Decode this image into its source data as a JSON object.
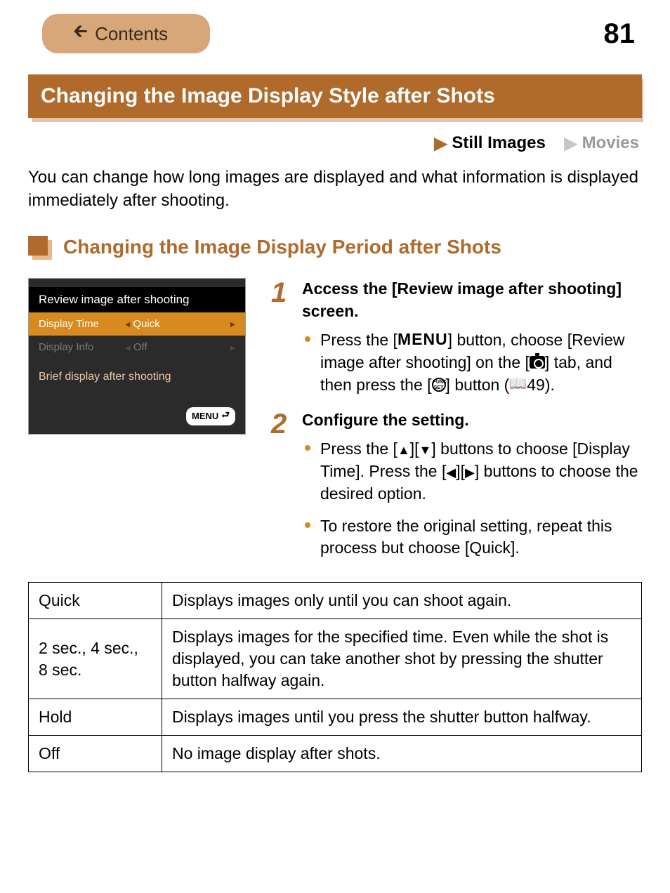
{
  "page_number": "81",
  "contents_button": "Contents",
  "main_title": "Changing the Image Display Style after Shots",
  "modes": {
    "still": "Still Images",
    "movies": "Movies"
  },
  "intro": "You can change how long images are displayed and what information is displayed immediately after shooting.",
  "subheading": "Changing the Image Display Period after Shots",
  "camera_screen": {
    "title": "Review image after shooting",
    "rows": [
      {
        "label": "Display Time",
        "value": "Quick",
        "selected": true
      },
      {
        "label": "Display Info",
        "value": "Off",
        "selected": false
      }
    ],
    "note": "Brief display after shooting",
    "footer_label": "MENU",
    "colors": {
      "bg": "#2b2b2b",
      "title_bg": "#000000",
      "selected_bg": "#d78a1f",
      "dim_text": "#7a7a7a",
      "note_text": "#e6c9a4"
    }
  },
  "steps": [
    {
      "num": "1",
      "title": "Access the [Review image after shooting] screen.",
      "bullets": [
        {
          "pre1": "Press the [",
          "menu_word": "MENU",
          "post1": "] button, choose [Review image after shooting] on the [",
          "cam_icon": true,
          "post2": "] tab, and then press the [",
          "func_icon": true,
          "post3": "] button (",
          "book_ref": "49",
          "post4": ")."
        }
      ]
    },
    {
      "num": "2",
      "title": "Configure the setting.",
      "bullets": [
        {
          "pre1": "Press the [",
          "up": "▲",
          "mid1": "][",
          "down": "▼",
          "post1": "] buttons to choose [Display Time]. Press the [",
          "left": "◀",
          "mid2": "][",
          "right": "▶",
          "post2": "] buttons to choose the desired option."
        },
        {
          "plain": "To restore the original setting, repeat this process but choose [Quick]."
        }
      ]
    }
  ],
  "table": [
    {
      "opt": "Quick",
      "desc": "Displays images only until you can shoot again."
    },
    {
      "opt": "2 sec., 4 sec., 8 sec.",
      "desc": "Displays images for the specified time. Even while the shot is displayed, you can take another shot by pressing the shutter button halfway again."
    },
    {
      "opt": "Hold",
      "desc": "Displays images until you press the shutter button halfway."
    },
    {
      "opt": "Off",
      "desc": "No image display after shots."
    }
  ],
  "colors": {
    "accent": "#b06a2b",
    "accent_light": "#d7a679",
    "bullet": "#d78a1f",
    "dim_text": "#9a9a9a"
  }
}
